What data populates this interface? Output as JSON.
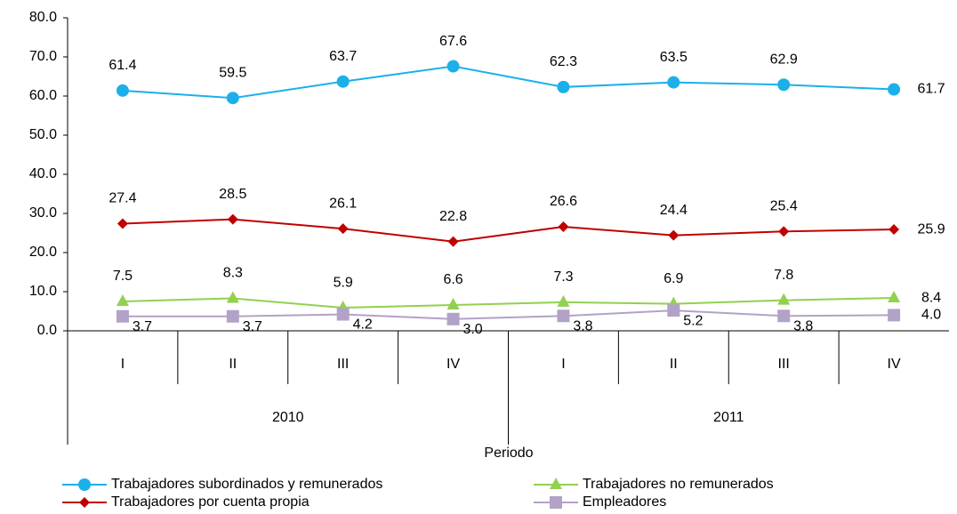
{
  "chart_data": {
    "type": "line",
    "categories": [
      "I",
      "II",
      "III",
      "IV",
      "I",
      "II",
      "III",
      "IV"
    ],
    "groups": [
      {
        "label": "2010",
        "size": 4
      },
      {
        "label": "2011",
        "size": 4
      }
    ],
    "x_label": "Periodo",
    "ylim": [
      0,
      80
    ],
    "yticks": [
      {
        "value": 0,
        "label": "0.0"
      },
      {
        "value": 10,
        "label": "10.0"
      },
      {
        "value": 20,
        "label": "20.0"
      },
      {
        "value": 30,
        "label": "30.0"
      },
      {
        "value": 40,
        "label": "40.0"
      },
      {
        "value": 50,
        "label": "50.0"
      },
      {
        "value": 60,
        "label": "60.0"
      },
      {
        "value": 70,
        "label": "70.0"
      },
      {
        "value": 80,
        "label": "80.0"
      }
    ],
    "series": [
      {
        "name": "Trabajadores subordinados y remunerados",
        "color": "#1cb0ea",
        "marker": "circle",
        "values": [
          61.4,
          59.5,
          63.7,
          67.6,
          62.3,
          63.5,
          62.9,
          61.7
        ],
        "value_labels": [
          "61.4",
          "59.5",
          "63.7",
          "67.6",
          "62.3",
          "63.5",
          "62.9",
          "61.7"
        ]
      },
      {
        "name": "Trabajadores por cuenta propia",
        "color": "#c00000",
        "marker": "diamond",
        "values": [
          27.4,
          28.5,
          26.1,
          22.8,
          26.6,
          24.4,
          25.4,
          25.9
        ],
        "value_labels": [
          "27.4",
          "28.5",
          "26.1",
          "22.8",
          "26.6",
          "24.4",
          "25.4",
          "25.9"
        ]
      },
      {
        "name": "Trabajadores no remunerados",
        "color": "#92d050",
        "marker": "triangle",
        "values": [
          7.5,
          8.3,
          5.9,
          6.6,
          7.3,
          6.9,
          7.8,
          8.4
        ],
        "value_labels": [
          "7.5",
          "8.3",
          "5.9",
          "6.6",
          "7.3",
          "6.9",
          "7.8",
          "8.4"
        ]
      },
      {
        "name": "Empleadores",
        "color": "#b3a2c7",
        "marker": "square",
        "values": [
          3.7,
          3.7,
          4.2,
          3.0,
          3.8,
          5.2,
          3.8,
          4.0
        ],
        "value_labels": [
          "3.7",
          "3.7",
          "4.2",
          "3.0",
          "3.8",
          "5.2",
          "3.8",
          "4.0"
        ]
      }
    ]
  }
}
